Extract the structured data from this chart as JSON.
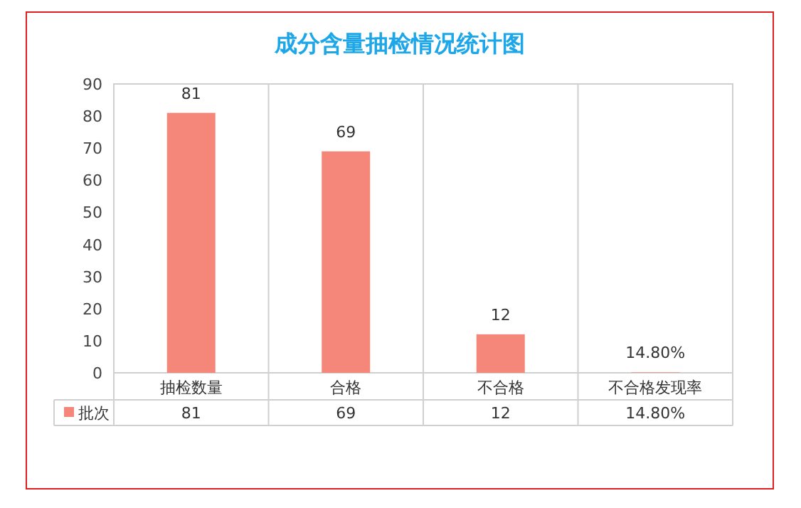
{
  "chart_data": {
    "type": "bar",
    "title": "成分含量抽检情况统计图",
    "categories": [
      "抽检数量",
      "合格",
      "不合格",
      "不合格发现率"
    ],
    "series": [
      {
        "name": "批次",
        "color": "#f5877a",
        "values": [
          81,
          69,
          12,
          0.148
        ],
        "value_labels": [
          "81",
          "69",
          "12",
          "14.80%"
        ]
      }
    ],
    "ylim": [
      0,
      90
    ],
    "yticks": [
      0,
      10,
      20,
      30,
      40,
      50,
      60,
      70,
      80,
      90
    ],
    "grid": false,
    "legend": "bottom"
  }
}
